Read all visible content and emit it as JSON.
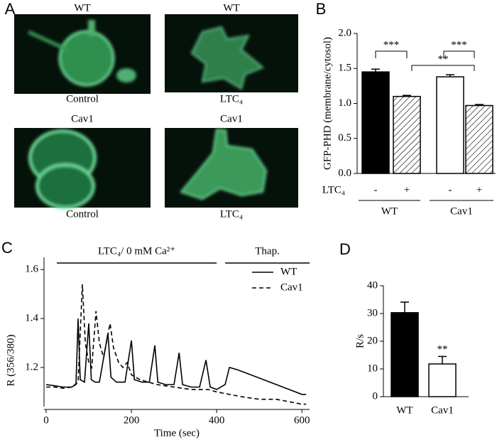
{
  "panel_letters": [
    "A",
    "B",
    "C",
    "D"
  ],
  "images": [
    {
      "top": "WT",
      "bottom": "Control"
    },
    {
      "top": "WT",
      "bottom": "LTC₄"
    },
    {
      "top": "Cav1",
      "bottom": "Control"
    },
    {
      "top": "Cav1",
      "bottom": "LTC₄"
    }
  ],
  "chart_data": [
    {
      "type": "bar",
      "y_label": "GFP-PHD (membrane/cytosol)",
      "categories": [
        "-",
        "+",
        "-",
        "+"
      ],
      "row_label": "LTC₄",
      "groups": [
        "WT",
        "Cav1"
      ],
      "values": [
        1.45,
        1.1,
        1.38,
        0.97
      ],
      "errors": [
        0.04,
        0.015,
        0.03,
        0.015
      ],
      "colors": [
        "#000000",
        "#ffffff",
        "#ffffff",
        "#ffffff"
      ],
      "hatched": [
        false,
        true,
        false,
        true
      ],
      "ylim": [
        0,
        2.0
      ],
      "yticks": [
        {
          "value": 0,
          "label": "0.0"
        },
        0.5,
        {
          "value": 1,
          "label": "1.0"
        },
        1.5,
        {
          "value": 2,
          "label": "2.0"
        }
      ],
      "annotations": [
        "***",
        "**",
        "***"
      ]
    },
    {
      "type": "line",
      "x_label": "Time (sec)",
      "y_label": "R (356/380)",
      "xlim": [
        -5,
        618
      ],
      "xticks": [
        0,
        200,
        400,
        600
      ],
      "ylim": [
        1.04,
        1.65
      ],
      "yticks": [
        1.2,
        1.4,
        1.6
      ],
      "periods": [
        {
          "label": "LTC₄/ 0 mM Ca²⁺",
          "start": 25,
          "end": 400
        },
        {
          "label": "Thap.",
          "start": 420,
          "end": 618
        }
      ],
      "series": [
        {
          "name": "WT",
          "color": "#000000",
          "dash": "solid",
          "x": [
            0,
            20,
            40,
            60,
            70,
            75,
            80,
            90,
            100,
            106,
            115,
            125,
            145,
            152,
            165,
            185,
            200,
            207,
            225,
            242,
            255,
            262,
            280,
            300,
            312,
            320,
            340,
            360,
            375,
            385,
            400,
            420,
            430,
            450,
            480,
            510,
            540,
            570,
            600,
            610
          ],
          "values": [
            1.13,
            1.125,
            1.12,
            1.12,
            1.13,
            1.4,
            1.15,
            1.14,
            1.38,
            1.15,
            1.14,
            1.14,
            1.34,
            1.16,
            1.14,
            1.14,
            1.31,
            1.15,
            1.14,
            1.14,
            1.29,
            1.14,
            1.13,
            1.13,
            1.26,
            1.13,
            1.12,
            1.12,
            1.23,
            1.12,
            1.11,
            1.13,
            1.2,
            1.19,
            1.17,
            1.15,
            1.13,
            1.11,
            1.09,
            1.09
          ]
        },
        {
          "name": "Cav1",
          "color": "#000000",
          "dash": "dashed",
          "x": [
            0,
            20,
            40,
            60,
            75,
            85,
            92,
            100,
            107,
            117,
            125,
            135,
            150,
            158,
            170,
            180,
            190,
            200,
            220,
            240,
            260,
            300,
            340,
            380,
            400,
            430,
            460,
            500,
            540,
            570,
            600,
            610
          ],
          "values": [
            1.12,
            1.12,
            1.115,
            1.12,
            1.14,
            1.54,
            1.3,
            1.22,
            1.2,
            1.43,
            1.3,
            1.24,
            1.38,
            1.28,
            1.22,
            1.2,
            1.22,
            1.17,
            1.15,
            1.14,
            1.13,
            1.12,
            1.11,
            1.11,
            1.1,
            1.09,
            1.08,
            1.07,
            1.07,
            1.06,
            1.05,
            1.05
          ]
        }
      ]
    },
    {
      "type": "bar",
      "y_label": "R/s",
      "categories": [
        "WT",
        "Cav1"
      ],
      "values": [
        30.3,
        11.8
      ],
      "errors": [
        3.8,
        2.7
      ],
      "colors": [
        "#000000",
        "#ffffff"
      ],
      "hatched": [
        false,
        false
      ],
      "ylim": [
        0,
        40
      ],
      "yticks": [
        0,
        10,
        20,
        30,
        40
      ],
      "annotations": [
        "**"
      ]
    }
  ]
}
